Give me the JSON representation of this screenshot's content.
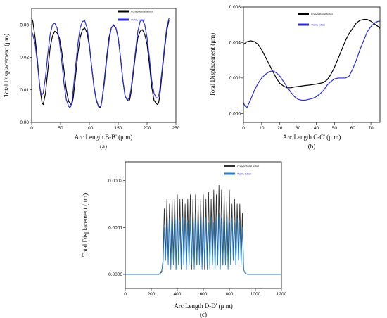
{
  "chart_data": [
    {
      "type": "line",
      "caption": "(a)",
      "xlabel": "Arc Length B-B' (μ m)",
      "ylabel": "Total Displacement (μm)",
      "xlim": [
        0,
        250
      ],
      "ylim": [
        0,
        0.035
      ],
      "xticks": [
        "0",
        "50",
        "100",
        "150",
        "200",
        "250"
      ],
      "yticks": [
        "0.00",
        "0.01",
        "0.02",
        "0.03"
      ],
      "legend_position": "top-right",
      "series": [
        {
          "name": "Conventional tether",
          "color": "#000000",
          "x": [
            0,
            2,
            6,
            10,
            14,
            18,
            20,
            24,
            28,
            32,
            36,
            40,
            44,
            48,
            52,
            56,
            60,
            64,
            68,
            70,
            72,
            76,
            80,
            84,
            88,
            92,
            96,
            100,
            104,
            108,
            112,
            116,
            118,
            120,
            122,
            126,
            130,
            134,
            138,
            142,
            146,
            150,
            154,
            158,
            162,
            166,
            168,
            170,
            172,
            176,
            180,
            184,
            188,
            192,
            196,
            200,
            204,
            208,
            212,
            216,
            218,
            220,
            222,
            226,
            230,
            234,
            238
          ],
          "y": [
            0.032,
            0.031,
            0.026,
            0.019,
            0.011,
            0.006,
            0.0055,
            0.009,
            0.016,
            0.023,
            0.0265,
            0.028,
            0.0275,
            0.026,
            0.022,
            0.016,
            0.01,
            0.0065,
            0.0055,
            0.0058,
            0.0075,
            0.014,
            0.021,
            0.026,
            0.0285,
            0.029,
            0.0275,
            0.0235,
            0.017,
            0.011,
            0.007,
            0.0048,
            0.0045,
            0.005,
            0.007,
            0.013,
            0.02,
            0.026,
            0.029,
            0.0298,
            0.029,
            0.026,
            0.02,
            0.013,
            0.008,
            0.0068,
            0.0066,
            0.007,
            0.009,
            0.015,
            0.021,
            0.026,
            0.028,
            0.0285,
            0.027,
            0.024,
            0.018,
            0.011,
            0.0068,
            0.0058,
            0.0055,
            0.006,
            0.008,
            0.015,
            0.022,
            0.028,
            0.0315
          ]
        },
        {
          "name": "TWHL tether",
          "color": "#2b2bd9",
          "x": [
            0,
            2,
            6,
            10,
            14,
            16,
            18,
            20,
            24,
            28,
            32,
            36,
            40,
            44,
            48,
            52,
            56,
            60,
            64,
            66,
            68,
            70,
            72,
            76,
            80,
            84,
            88,
            92,
            96,
            100,
            104,
            108,
            112,
            116,
            118,
            120,
            122,
            126,
            130,
            134,
            138,
            142,
            146,
            150,
            154,
            158,
            162,
            166,
            168,
            170,
            172,
            176,
            180,
            184,
            188,
            192,
            196,
            200,
            204,
            208,
            212,
            216,
            218,
            220,
            222,
            226,
            230,
            234,
            238
          ],
          "y": [
            0.028,
            0.027,
            0.024,
            0.018,
            0.011,
            0.009,
            0.0085,
            0.009,
            0.014,
            0.021,
            0.027,
            0.03,
            0.0305,
            0.029,
            0.025,
            0.019,
            0.012,
            0.007,
            0.005,
            0.0045,
            0.005,
            0.0065,
            0.01,
            0.017,
            0.024,
            0.029,
            0.031,
            0.0312,
            0.029,
            0.024,
            0.017,
            0.011,
            0.0065,
            0.005,
            0.0048,
            0.005,
            0.007,
            0.012,
            0.019,
            0.025,
            0.029,
            0.03,
            0.029,
            0.026,
            0.02,
            0.013,
            0.008,
            0.007,
            0.0072,
            0.008,
            0.01,
            0.016,
            0.022,
            0.028,
            0.031,
            0.0315,
            0.03,
            0.026,
            0.02,
            0.013,
            0.009,
            0.0075,
            0.0075,
            0.008,
            0.01,
            0.016,
            0.023,
            0.029,
            0.032
          ]
        }
      ]
    },
    {
      "type": "line",
      "caption": "(b)",
      "xlabel": "Arc Length C-C' (μ m)",
      "ylabel": "Total Displacement (μm)",
      "xlim": [
        0,
        75
      ],
      "ylim": [
        -0.0005,
        0.006
      ],
      "xticks": [
        "0",
        "10",
        "20",
        "30",
        "40",
        "50",
        "60",
        "70"
      ],
      "yticks": [
        "0.000",
        "0.002",
        "0.004",
        "0.006"
      ],
      "legend_position": "top-right",
      "series": [
        {
          "name": "Conventional tether",
          "color": "#000000",
          "x": [
            0,
            2,
            4,
            6,
            8,
            10,
            12,
            14,
            16,
            18,
            20,
            22,
            24,
            26,
            28,
            30,
            32,
            34,
            36,
            38,
            40,
            42,
            44,
            46,
            48,
            50,
            52,
            54,
            56,
            58,
            60,
            62,
            64,
            66,
            68,
            70,
            72,
            74,
            75
          ],
          "y": [
            0.0039,
            0.00405,
            0.0041,
            0.00405,
            0.0039,
            0.0036,
            0.0032,
            0.0028,
            0.0024,
            0.002,
            0.0017,
            0.00155,
            0.00145,
            0.00145,
            0.0015,
            0.00152,
            0.00155,
            0.00158,
            0.0016,
            0.00163,
            0.00166,
            0.0017,
            0.00175,
            0.0019,
            0.0022,
            0.0026,
            0.0031,
            0.0036,
            0.0041,
            0.0045,
            0.0048,
            0.0051,
            0.00525,
            0.0053,
            0.0053,
            0.0052,
            0.00505,
            0.0049,
            0.0048
          ]
        },
        {
          "name": "TWHL tether",
          "color": "#2b2bd9",
          "x": [
            0,
            1,
            2,
            4,
            6,
            8,
            10,
            12,
            14,
            16,
            18,
            20,
            22,
            24,
            26,
            28,
            30,
            32,
            34,
            36,
            38,
            40,
            42,
            44,
            46,
            48,
            50,
            52,
            54,
            56,
            58,
            60,
            62,
            64,
            66,
            68,
            70,
            72,
            74,
            75
          ],
          "y": [
            0.0006,
            0.0004,
            0.00035,
            0.0008,
            0.0013,
            0.0017,
            0.002,
            0.0022,
            0.00235,
            0.0024,
            0.0023,
            0.0021,
            0.0018,
            0.0015,
            0.0012,
            0.00095,
            0.0008,
            0.00075,
            0.00075,
            0.0008,
            0.00085,
            0.00095,
            0.0011,
            0.0013,
            0.0016,
            0.0018,
            0.00195,
            0.002,
            0.002,
            0.002,
            0.0021,
            0.0025,
            0.003,
            0.0036,
            0.0041,
            0.0046,
            0.0049,
            0.0051,
            0.0052,
            0.0052
          ]
        }
      ]
    },
    {
      "type": "line",
      "caption": "(c)",
      "xlabel": "Arc Length D-D' (μ m)",
      "ylabel": "Total Displacement (μm)",
      "xlim": [
        0,
        1200
      ],
      "ylim": [
        -3e-05,
        0.00024
      ],
      "xticks": [
        "0",
        "200",
        "400",
        "600",
        "800",
        "1000",
        "1200"
      ],
      "yticks": [
        "0.0000",
        "0.0001",
        "0.0002"
      ],
      "legend_position": "top-right",
      "series": [
        {
          "name": "Conventional tether",
          "color": "#333333",
          "x": [
            0,
            260,
            280,
            290,
            300,
            310,
            320,
            330,
            340,
            350,
            360,
            370,
            380,
            390,
            400,
            410,
            420,
            430,
            440,
            450,
            460,
            470,
            480,
            490,
            500,
            510,
            520,
            530,
            540,
            550,
            560,
            570,
            580,
            590,
            600,
            610,
            620,
            630,
            640,
            650,
            660,
            670,
            680,
            690,
            700,
            710,
            720,
            730,
            740,
            750,
            760,
            770,
            780,
            790,
            800,
            810,
            820,
            830,
            840,
            850,
            860,
            870,
            880,
            890,
            900,
            910,
            920,
            940,
            1200
          ],
          "y": [
            0,
            0,
            5e-06,
            3e-05,
            0.00014,
            4e-05,
            0.00016,
            3e-05,
            0.00015,
            2e-05,
            0.00016,
            3e-05,
            0.00016,
            1e-05,
            0.00017,
            2e-05,
            0.00016,
            2e-05,
            0.00016,
            2e-05,
            0.00015,
            1e-05,
            0.00016,
            2e-05,
            0.00017,
            1e-05,
            0.00016,
            2e-05,
            0.00017,
            2e-05,
            0.00015,
            3e-05,
            0.00016,
            2e-05,
            0.00017,
            1e-05,
            0.00016,
            2e-05,
            0.000175,
            1e-05,
            0.00016,
            3e-05,
            0.00018,
            2e-05,
            0.00017,
            2e-05,
            0.00019,
            3e-05,
            0.00018,
            2e-05,
            0.00017,
            2e-05,
            0.000155,
            3e-05,
            0.00018,
            2e-05,
            0.00015,
            3e-05,
            0.00016,
            2e-05,
            0.00015,
            4e-05,
            0.00015,
            3e-05,
            0.00013,
            1e-05,
            3e-06,
            0,
            0
          ]
        },
        {
          "name": "TWHL tether",
          "color": "#1f7fd1",
          "x": [
            0,
            260,
            280,
            290,
            300,
            310,
            320,
            330,
            340,
            350,
            360,
            370,
            380,
            390,
            400,
            410,
            420,
            430,
            440,
            450,
            460,
            470,
            480,
            490,
            500,
            510,
            520,
            530,
            540,
            550,
            560,
            570,
            580,
            590,
            600,
            610,
            620,
            630,
            640,
            650,
            660,
            670,
            680,
            690,
            700,
            710,
            720,
            730,
            740,
            750,
            760,
            770,
            780,
            790,
            800,
            810,
            820,
            830,
            840,
            850,
            860,
            870,
            880,
            890,
            900,
            910,
            920,
            940,
            1200
          ],
          "y": [
            0,
            0,
            8e-06,
            2e-05,
            0.0001,
            3e-05,
            0.00011,
            2e-05,
            0.00012,
            1e-05,
            0.00011,
            2e-05,
            0.00012,
            1e-05,
            0.00012,
            2e-05,
            0.00011,
            1e-05,
            0.00012,
            2e-05,
            0.00012,
            1e-05,
            0.00011,
            2e-05,
            0.00012,
            2e-05,
            0.00011,
            1e-05,
            0.00012,
            2e-05,
            0.00011,
            2e-05,
            0.00012,
            1e-05,
            0.00011,
            2e-05,
            0.00012,
            1e-05,
            0.00011,
            2e-05,
            0.00012,
            2e-05,
            0.00011,
            1e-05,
            0.00012,
            2e-05,
            0.00013,
            1e-05,
            0.00012,
            2e-05,
            0.00011,
            2e-05,
            0.00012,
            1e-05,
            0.00011,
            2e-05,
            0.00012,
            3e-05,
            0.00011,
            2e-05,
            0.00012,
            3e-05,
            0.00011,
            2e-05,
            0.0001,
            1e-05,
            3e-06,
            0,
            0
          ]
        }
      ]
    }
  ]
}
